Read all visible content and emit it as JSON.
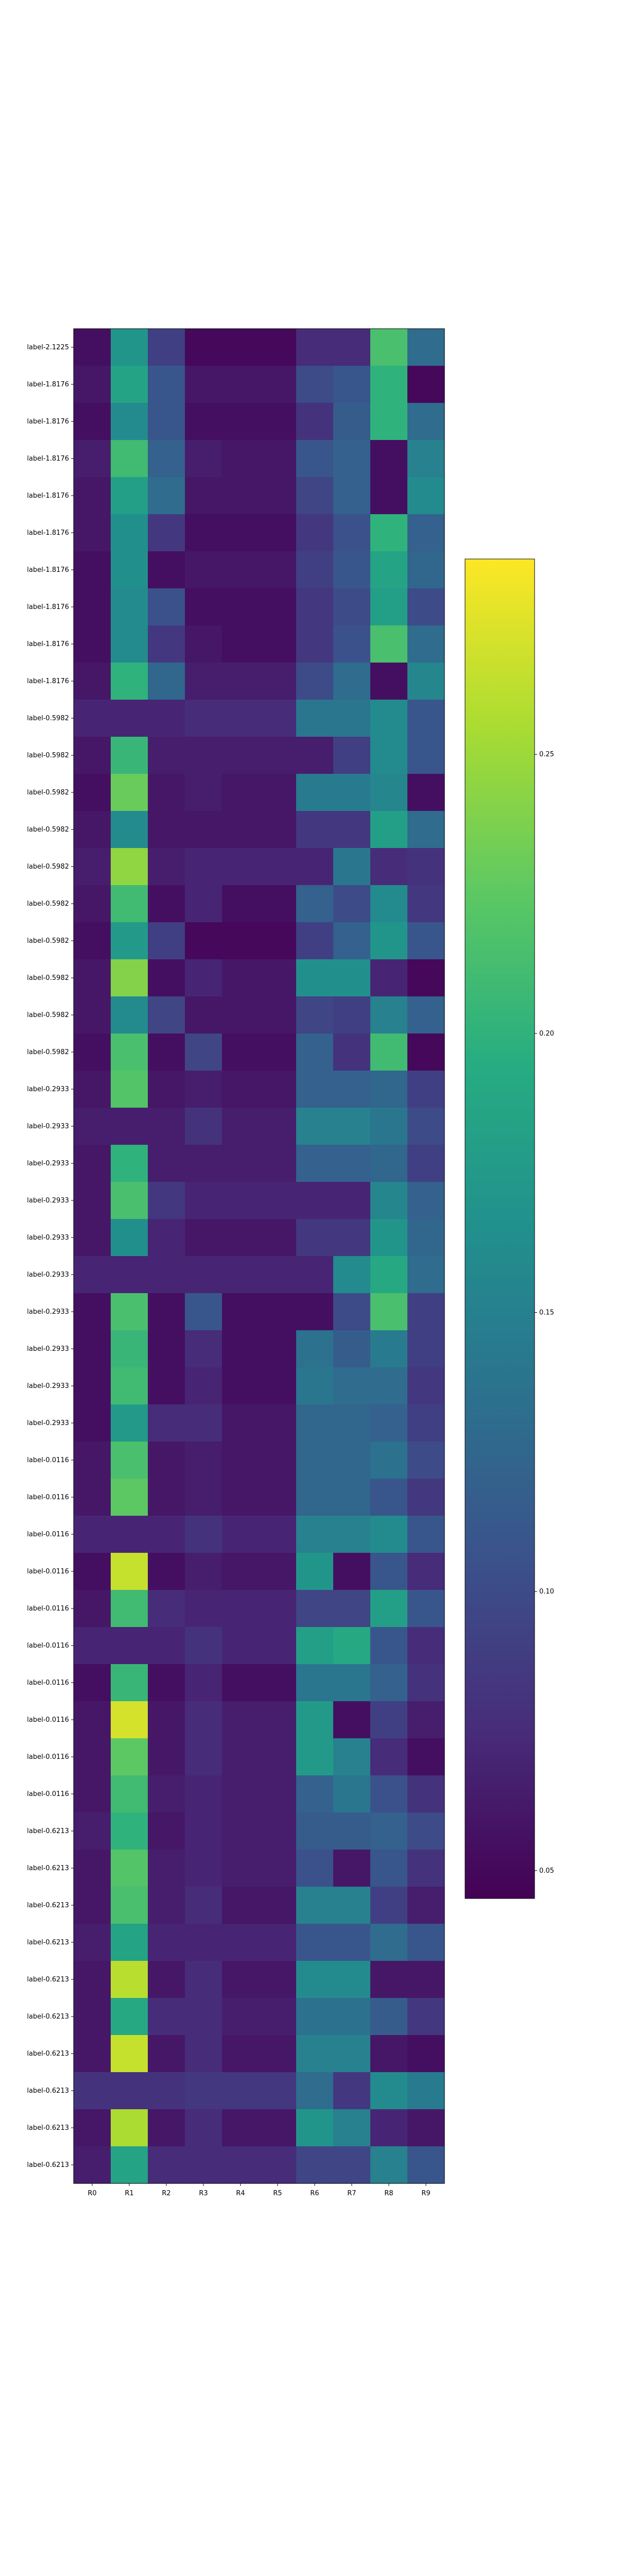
{
  "chart_data": {
    "type": "heatmap",
    "title": "",
    "xlabel": "",
    "ylabel": "",
    "columns": [
      "R0",
      "R1",
      "R2",
      "R3",
      "R4",
      "R5",
      "R6",
      "R7",
      "R8",
      "R9"
    ],
    "rows": [
      "label-2.1225",
      "label-1.8176",
      "label-1.8176",
      "label-1.8176",
      "label-1.8176",
      "label-1.8176",
      "label-1.8176",
      "label-1.8176",
      "label-1.8176",
      "label-1.8176",
      "label-0.5982",
      "label-0.5982",
      "label-0.5982",
      "label-0.5982",
      "label-0.5982",
      "label-0.5982",
      "label-0.5982",
      "label-0.5982",
      "label-0.5982",
      "label-0.5982",
      "label-0.2933",
      "label-0.2933",
      "label-0.2933",
      "label-0.2933",
      "label-0.2933",
      "label-0.2933",
      "label-0.2933",
      "label-0.2933",
      "label-0.2933",
      "label-0.2933",
      "label-0.0116",
      "label-0.0116",
      "label-0.0116",
      "label-0.0116",
      "label-0.0116",
      "label-0.0116",
      "label-0.0116",
      "label-0.0116",
      "label-0.0116",
      "label-0.0116",
      "label-0.6213",
      "label-0.6213",
      "label-0.6213",
      "label-0.6213",
      "label-0.6213",
      "label-0.6213",
      "label-0.6213",
      "label-0.6213",
      "label-0.6213",
      "label-0.6213"
    ],
    "values": [
      [
        0.055,
        0.17,
        0.09,
        0.05,
        0.05,
        0.05,
        0.075,
        0.075,
        0.215,
        0.13
      ],
      [
        0.06,
        0.185,
        0.11,
        0.06,
        0.06,
        0.06,
        0.1,
        0.11,
        0.2,
        0.05
      ],
      [
        0.055,
        0.16,
        0.11,
        0.055,
        0.055,
        0.055,
        0.08,
        0.115,
        0.2,
        0.13
      ],
      [
        0.065,
        0.21,
        0.12,
        0.065,
        0.06,
        0.06,
        0.11,
        0.12,
        0.055,
        0.15
      ],
      [
        0.06,
        0.18,
        0.13,
        0.06,
        0.06,
        0.06,
        0.095,
        0.12,
        0.055,
        0.16
      ],
      [
        0.06,
        0.165,
        0.085,
        0.055,
        0.055,
        0.055,
        0.085,
        0.105,
        0.2,
        0.12
      ],
      [
        0.055,
        0.165,
        0.055,
        0.06,
        0.06,
        0.06,
        0.09,
        0.11,
        0.185,
        0.125
      ],
      [
        0.055,
        0.16,
        0.105,
        0.055,
        0.055,
        0.055,
        0.085,
        0.1,
        0.18,
        0.1
      ],
      [
        0.055,
        0.16,
        0.085,
        0.06,
        0.055,
        0.055,
        0.085,
        0.105,
        0.215,
        0.13
      ],
      [
        0.06,
        0.2,
        0.125,
        0.065,
        0.065,
        0.065,
        0.1,
        0.13,
        0.055,
        0.155
      ],
      [
        0.07,
        0.07,
        0.07,
        0.075,
        0.075,
        0.075,
        0.14,
        0.14,
        0.16,
        0.11
      ],
      [
        0.06,
        0.205,
        0.065,
        0.065,
        0.065,
        0.065,
        0.065,
        0.09,
        0.16,
        0.11
      ],
      [
        0.055,
        0.23,
        0.06,
        0.065,
        0.06,
        0.06,
        0.145,
        0.145,
        0.155,
        0.055
      ],
      [
        0.06,
        0.16,
        0.06,
        0.06,
        0.06,
        0.06,
        0.085,
        0.085,
        0.18,
        0.13
      ],
      [
        0.065,
        0.245,
        0.065,
        0.07,
        0.07,
        0.07,
        0.07,
        0.14,
        0.075,
        0.08
      ],
      [
        0.06,
        0.21,
        0.055,
        0.07,
        0.055,
        0.055,
        0.12,
        0.1,
        0.16,
        0.085
      ],
      [
        0.055,
        0.175,
        0.09,
        0.05,
        0.05,
        0.05,
        0.09,
        0.12,
        0.17,
        0.11
      ],
      [
        0.06,
        0.24,
        0.055,
        0.07,
        0.06,
        0.06,
        0.165,
        0.165,
        0.07,
        0.05
      ],
      [
        0.06,
        0.16,
        0.095,
        0.06,
        0.06,
        0.06,
        0.095,
        0.09,
        0.15,
        0.12
      ],
      [
        0.055,
        0.215,
        0.055,
        0.095,
        0.055,
        0.055,
        0.12,
        0.08,
        0.21,
        0.05
      ],
      [
        0.06,
        0.22,
        0.06,
        0.065,
        0.06,
        0.06,
        0.12,
        0.12,
        0.125,
        0.09
      ],
      [
        0.065,
        0.065,
        0.065,
        0.08,
        0.065,
        0.065,
        0.15,
        0.15,
        0.14,
        0.1
      ],
      [
        0.06,
        0.2,
        0.065,
        0.065,
        0.065,
        0.065,
        0.12,
        0.12,
        0.125,
        0.09
      ],
      [
        0.06,
        0.215,
        0.085,
        0.07,
        0.07,
        0.07,
        0.07,
        0.07,
        0.155,
        0.12
      ],
      [
        0.06,
        0.165,
        0.07,
        0.06,
        0.06,
        0.06,
        0.085,
        0.085,
        0.17,
        0.125
      ],
      [
        0.07,
        0.07,
        0.07,
        0.07,
        0.07,
        0.07,
        0.07,
        0.16,
        0.19,
        0.13
      ],
      [
        0.055,
        0.215,
        0.055,
        0.11,
        0.055,
        0.055,
        0.055,
        0.1,
        0.215,
        0.09
      ],
      [
        0.055,
        0.205,
        0.055,
        0.075,
        0.055,
        0.055,
        0.135,
        0.115,
        0.145,
        0.09
      ],
      [
        0.055,
        0.21,
        0.055,
        0.07,
        0.055,
        0.055,
        0.14,
        0.13,
        0.13,
        0.085
      ],
      [
        0.055,
        0.175,
        0.075,
        0.075,
        0.06,
        0.06,
        0.125,
        0.125,
        0.12,
        0.09
      ],
      [
        0.06,
        0.215,
        0.06,
        0.065,
        0.06,
        0.06,
        0.125,
        0.125,
        0.135,
        0.1
      ],
      [
        0.06,
        0.225,
        0.06,
        0.065,
        0.06,
        0.06,
        0.125,
        0.125,
        0.11,
        0.085
      ],
      [
        0.07,
        0.07,
        0.07,
        0.08,
        0.07,
        0.07,
        0.15,
        0.15,
        0.16,
        0.11
      ],
      [
        0.055,
        0.265,
        0.055,
        0.065,
        0.06,
        0.06,
        0.17,
        0.055,
        0.11,
        0.075
      ],
      [
        0.06,
        0.21,
        0.075,
        0.07,
        0.07,
        0.07,
        0.095,
        0.095,
        0.18,
        0.11
      ],
      [
        0.07,
        0.07,
        0.07,
        0.08,
        0.07,
        0.07,
        0.18,
        0.19,
        0.11,
        0.075
      ],
      [
        0.055,
        0.205,
        0.055,
        0.07,
        0.055,
        0.055,
        0.14,
        0.14,
        0.12,
        0.08
      ],
      [
        0.06,
        0.27,
        0.06,
        0.075,
        0.065,
        0.065,
        0.175,
        0.055,
        0.09,
        0.065
      ],
      [
        0.06,
        0.225,
        0.06,
        0.075,
        0.065,
        0.065,
        0.175,
        0.15,
        0.075,
        0.055
      ],
      [
        0.06,
        0.21,
        0.065,
        0.07,
        0.065,
        0.065,
        0.12,
        0.14,
        0.105,
        0.08
      ],
      [
        0.065,
        0.2,
        0.06,
        0.07,
        0.065,
        0.065,
        0.115,
        0.115,
        0.12,
        0.1
      ],
      [
        0.06,
        0.22,
        0.065,
        0.07,
        0.065,
        0.065,
        0.105,
        0.06,
        0.11,
        0.08
      ],
      [
        0.06,
        0.215,
        0.065,
        0.075,
        0.06,
        0.06,
        0.15,
        0.15,
        0.09,
        0.065
      ],
      [
        0.065,
        0.185,
        0.07,
        0.07,
        0.07,
        0.07,
        0.11,
        0.11,
        0.13,
        0.11
      ],
      [
        0.06,
        0.26,
        0.06,
        0.075,
        0.06,
        0.06,
        0.16,
        0.16,
        0.06,
        0.06
      ],
      [
        0.06,
        0.19,
        0.075,
        0.075,
        0.065,
        0.065,
        0.135,
        0.135,
        0.115,
        0.085
      ],
      [
        0.06,
        0.265,
        0.06,
        0.075,
        0.06,
        0.06,
        0.15,
        0.15,
        0.06,
        0.055
      ],
      [
        0.08,
        0.08,
        0.08,
        0.085,
        0.085,
        0.085,
        0.13,
        0.085,
        0.16,
        0.145
      ],
      [
        0.06,
        0.255,
        0.06,
        0.075,
        0.06,
        0.06,
        0.17,
        0.15,
        0.07,
        0.06
      ],
      [
        0.065,
        0.185,
        0.075,
        0.075,
        0.075,
        0.075,
        0.095,
        0.095,
        0.15,
        0.11
      ]
    ],
    "colormap": "viridis",
    "colorbar": {
      "range": [
        0.045,
        0.285
      ],
      "ticks": [
        "0.05",
        "0.10",
        "0.15",
        "0.20",
        "0.25"
      ]
    },
    "grid": false,
    "legend": "none"
  }
}
